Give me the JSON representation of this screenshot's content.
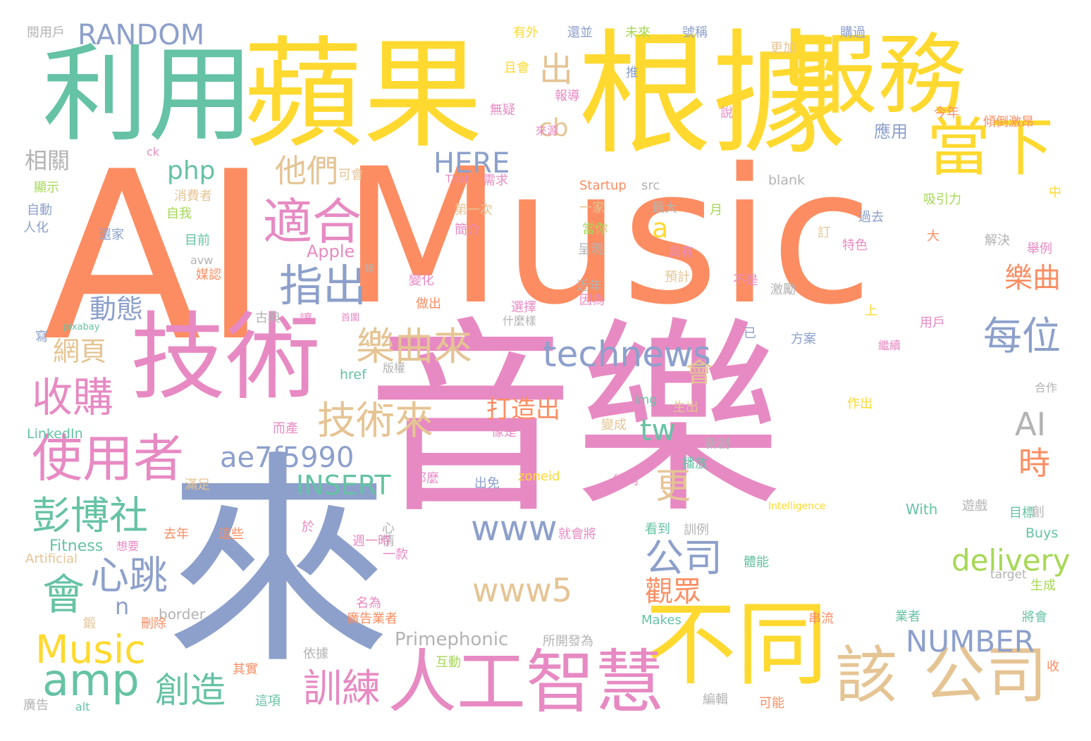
{
  "palette": {
    "teal": "#66C2A5",
    "orange": "#FC8D62",
    "blue": "#8DA0CB",
    "pink": "#E78AC3",
    "green": "#A6D854",
    "yellow": "#FFD92F",
    "tan": "#E5C494",
    "gray": "#B3B3B3"
  },
  "words": [
    {
      "text": "AI",
      "color": "orange"
    },
    {
      "text": "Music",
      "color": "orange"
    },
    {
      "text": "音樂",
      "color": "pink"
    },
    {
      "text": "來",
      "color": "blue"
    },
    {
      "text": "根據",
      "color": "yellow"
    },
    {
      "text": "蘋果",
      "color": "yellow"
    },
    {
      "text": "利用",
      "color": "teal"
    },
    {
      "text": "服務",
      "color": "yellow"
    },
    {
      "text": "技術",
      "color": "pink"
    },
    {
      "text": "不同",
      "color": "yellow"
    },
    {
      "text": "人工智慧",
      "color": "pink"
    },
    {
      "text": "當下",
      "color": "yellow"
    },
    {
      "text": "公司",
      "color": "tan"
    },
    {
      "text": "該",
      "color": "tan"
    },
    {
      "text": "適合",
      "color": "pink"
    },
    {
      "text": "使用者",
      "color": "pink"
    },
    {
      "text": "technews",
      "color": "blue"
    },
    {
      "text": "www",
      "color": "blue"
    },
    {
      "text": "www5",
      "color": "tan"
    },
    {
      "text": "amp",
      "color": "teal"
    },
    {
      "text": "Music",
      "color": "yellow"
    },
    {
      "text": "會",
      "color": "teal"
    },
    {
      "text": "心跳",
      "color": "blue"
    },
    {
      "text": "指出",
      "color": "blue"
    },
    {
      "text": "樂曲來",
      "color": "tan"
    },
    {
      "text": "技術來",
      "color": "tan"
    },
    {
      "text": "收購",
      "color": "pink"
    },
    {
      "text": "彭博社",
      "color": "teal"
    },
    {
      "text": "每位",
      "color": "blue"
    },
    {
      "text": "公司",
      "color": "blue"
    },
    {
      "text": "AI",
      "color": "gray"
    },
    {
      "text": "ae7f5990",
      "color": "blue"
    },
    {
      "text": "INSERT",
      "color": "teal"
    },
    {
      "text": "NUMBER",
      "color": "blue"
    },
    {
      "text": "delivery",
      "color": "green"
    },
    {
      "text": "訓練",
      "color": "pink"
    },
    {
      "text": "創造",
      "color": "teal"
    },
    {
      "text": "更",
      "color": "tan"
    },
    {
      "text": "HERE",
      "color": "blue"
    },
    {
      "text": "RANDOM",
      "color": "blue"
    },
    {
      "text": "php",
      "color": "teal"
    },
    {
      "text": "他們",
      "color": "tan"
    },
    {
      "text": "出",
      "color": "tan"
    },
    {
      "text": "cb",
      "color": "tan"
    },
    {
      "text": "動態",
      "color": "blue"
    },
    {
      "text": "網頁",
      "color": "tan"
    },
    {
      "text": "樂曲",
      "color": "orange"
    },
    {
      "text": "時",
      "color": "orange"
    },
    {
      "text": "tw",
      "color": "teal"
    },
    {
      "text": "觀眾",
      "color": "orange"
    },
    {
      "text": "打造出",
      "color": "orange"
    },
    {
      "text": "a",
      "color": "yellow"
    },
    {
      "text": "n",
      "color": "blue"
    },
    {
      "text": "會",
      "color": "tan"
    },
    {
      "text": "Primephonic",
      "color": "gray"
    },
    {
      "text": "相關",
      "color": "gray"
    },
    {
      "text": "應用",
      "color": "blue"
    },
    {
      "text": "Apple",
      "color": "pink"
    },
    {
      "text": "Fitness",
      "color": "teal"
    },
    {
      "text": "LinkedIn",
      "color": "teal"
    },
    {
      "text": "Artificial",
      "color": "tan"
    },
    {
      "text": "Startup",
      "color": "orange"
    },
    {
      "text": "src",
      "color": "gray"
    },
    {
      "text": "blank",
      "color": "gray"
    },
    {
      "text": "With",
      "color": "teal"
    },
    {
      "text": "Buys",
      "color": "teal"
    },
    {
      "text": "target",
      "color": "gray"
    },
    {
      "text": "Makes",
      "color": "teal"
    },
    {
      "text": "Intelligence",
      "color": "yellow"
    },
    {
      "text": "zoneid",
      "color": "yellow"
    },
    {
      "text": "border",
      "color": "gray"
    },
    {
      "text": "alt",
      "color": "teal"
    },
    {
      "text": "img",
      "color": "teal"
    },
    {
      "text": "href",
      "color": "teal"
    },
    {
      "text": "pixabay",
      "color": "teal"
    },
    {
      "text": "That",
      "color": "pink"
    },
    {
      "text": "avw",
      "color": "gray"
    },
    {
      "text": "ck",
      "color": "pink"
    },
    {
      "text": "閱用戶",
      "color": "gray"
    },
    {
      "text": "有外",
      "color": "yellow"
    },
    {
      "text": "還並",
      "color": "blue"
    },
    {
      "text": "未來",
      "color": "green"
    },
    {
      "text": "號稱",
      "color": "blue"
    },
    {
      "text": "購過",
      "color": "blue"
    },
    {
      "text": "推",
      "color": "blue"
    },
    {
      "text": "更加",
      "color": "tan"
    },
    {
      "text": "且會",
      "color": "yellow"
    },
    {
      "text": "報導",
      "color": "pink"
    },
    {
      "text": "無疑",
      "color": "pink"
    },
    {
      "text": "來源",
      "color": "pink"
    },
    {
      "text": "今年",
      "color": "orange"
    },
    {
      "text": "傾倒激昂",
      "color": "orange"
    },
    {
      "text": "說",
      "color": "pink"
    },
    {
      "text": "顯示",
      "color": "green"
    },
    {
      "text": "可會",
      "color": "tan"
    },
    {
      "text": "需求",
      "color": "pink"
    },
    {
      "text": "自動",
      "color": "blue"
    },
    {
      "text": "人化",
      "color": "blue"
    },
    {
      "text": "消費者",
      "color": "tan"
    },
    {
      "text": "自我",
      "color": "green"
    },
    {
      "text": "第一次",
      "color": "tan"
    },
    {
      "text": "月",
      "color": "green"
    },
    {
      "text": "過去",
      "color": "blue"
    },
    {
      "text": "吸引力",
      "color": "green"
    },
    {
      "text": "中",
      "color": "yellow"
    },
    {
      "text": "還家",
      "color": "blue"
    },
    {
      "text": "簡介",
      "color": "pink"
    },
    {
      "text": "一家",
      "color": "tan"
    },
    {
      "text": "最大",
      "color": "gray"
    },
    {
      "text": "當你",
      "color": "green"
    },
    {
      "text": "目前",
      "color": "teal"
    },
    {
      "text": "呈現",
      "color": "gray"
    },
    {
      "text": "具有",
      "color": "pink"
    },
    {
      "text": "訂",
      "color": "tan"
    },
    {
      "text": "大",
      "color": "orange"
    },
    {
      "text": "解決",
      "color": "gray"
    },
    {
      "text": "舉例",
      "color": "pink"
    },
    {
      "text": "特色",
      "color": "pink"
    },
    {
      "text": "媒認",
      "color": "orange"
    },
    {
      "text": "變化",
      "color": "pink"
    },
    {
      "text": "預計",
      "color": "tan"
    },
    {
      "text": "近年",
      "color": "gray"
    },
    {
      "text": "不是",
      "color": "pink"
    },
    {
      "text": "激勵",
      "color": "gray"
    },
    {
      "text": "古典",
      "color": "gray"
    },
    {
      "text": "做出",
      "color": "orange"
    },
    {
      "text": "選擇",
      "color": "pink"
    },
    {
      "text": "因為",
      "color": "pink"
    },
    {
      "text": "上",
      "color": "yellow"
    },
    {
      "text": "寫",
      "color": "blue"
    },
    {
      "text": "讓",
      "color": "pink"
    },
    {
      "text": "首圖",
      "color": "pink"
    },
    {
      "text": "什麼樣",
      "color": "gray"
    },
    {
      "text": "已",
      "color": "blue"
    },
    {
      "text": "方案",
      "color": "blue"
    },
    {
      "text": "用戶",
      "color": "pink"
    },
    {
      "text": "繼續",
      "color": "pink"
    },
    {
      "text": "版權",
      "color": "gray"
    },
    {
      "text": "合作",
      "color": "gray"
    },
    {
      "text": "生出",
      "color": "tan"
    },
    {
      "text": "作出",
      "color": "yellow"
    },
    {
      "text": "而產",
      "color": "pink"
    },
    {
      "text": "像是",
      "color": "pink"
    },
    {
      "text": "變成",
      "color": "tan"
    },
    {
      "text": "新創",
      "color": "gray"
    },
    {
      "text": "遊戲",
      "color": "gray"
    },
    {
      "text": "滿足",
      "color": "tan"
    },
    {
      "text": "那麼",
      "color": "pink"
    },
    {
      "text": "出免",
      "color": "blue"
    },
    {
      "text": "能夠",
      "color": "pink"
    },
    {
      "text": "播放",
      "color": "teal"
    },
    {
      "text": "目標",
      "color": "teal"
    },
    {
      "text": "創",
      "color": "gray"
    },
    {
      "text": "心情",
      "color": "gray"
    },
    {
      "text": "於",
      "color": "pink"
    },
    {
      "text": "看到",
      "color": "teal"
    },
    {
      "text": "去年",
      "color": "orange"
    },
    {
      "text": "這些",
      "color": "orange"
    },
    {
      "text": "週一時",
      "color": "pink"
    },
    {
      "text": "就會將",
      "color": "pink"
    },
    {
      "text": "訓例",
      "color": "gray"
    },
    {
      "text": "想要",
      "color": "pink"
    },
    {
      "text": "一款",
      "color": "pink"
    },
    {
      "text": "體能",
      "color": "teal"
    },
    {
      "text": "生成",
      "color": "green"
    },
    {
      "text": "名為",
      "color": "pink"
    },
    {
      "text": "鍛",
      "color": "tan"
    },
    {
      "text": "刪除",
      "color": "orange"
    },
    {
      "text": "廣告業者",
      "color": "orange"
    },
    {
      "text": "串流",
      "color": "orange"
    },
    {
      "text": "業者",
      "color": "teal"
    },
    {
      "text": "將會",
      "color": "teal"
    },
    {
      "text": "所開發為",
      "color": "gray"
    },
    {
      "text": "其實",
      "color": "orange"
    },
    {
      "text": "依據",
      "color": "gray"
    },
    {
      "text": "互動",
      "color": "green"
    },
    {
      "text": "收",
      "color": "orange"
    },
    {
      "text": "廣告",
      "color": "gray"
    },
    {
      "text": "這項",
      "color": "teal"
    },
    {
      "text": "編輯",
      "color": "gray"
    },
    {
      "text": "可能",
      "color": "orange"
    },
    {
      "text": "錄",
      "color": "gray"
    }
  ]
}
